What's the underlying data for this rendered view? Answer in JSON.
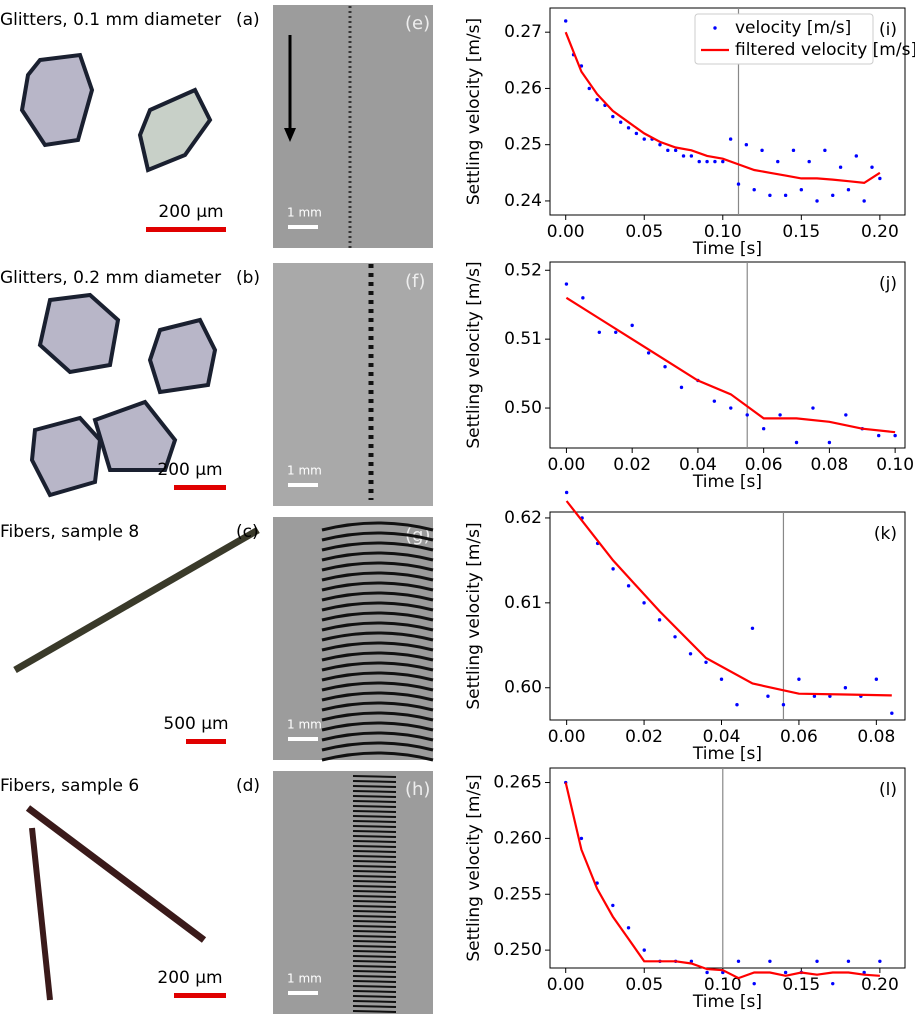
{
  "panels": [
    {
      "title": "Glitters, 0.1 mm diameter",
      "label": "(a)",
      "scale_bar": "200 µm",
      "image_label": "(e)",
      "image_scale_bar": "1 mm"
    },
    {
      "title": "Glitters, 0.2 mm diameter",
      "label": "(b)",
      "scale_bar": "200 µm",
      "image_label": "(f)",
      "image_scale_bar": "1 mm"
    },
    {
      "title": "Fibers, sample 8",
      "label": "(c)",
      "scale_bar": "500 µm",
      "image_label": "(g)",
      "image_scale_bar": "1 mm"
    },
    {
      "title": "Fibers, sample 6",
      "label": "(d)",
      "scale_bar": "200 µm",
      "image_label": "(h)",
      "image_scale_bar": "1 mm"
    }
  ],
  "chart_data": [
    {
      "type": "line",
      "panel_label": "(i)",
      "xlabel": "Time [s]",
      "ylabel": "Settling velocity [m/s]",
      "legend": "upper right",
      "xlim": [
        -0.01,
        0.216
      ],
      "ylim": [
        0.2375,
        0.2743
      ],
      "xticks": [
        {
          "value": 0,
          "label": "0.00"
        },
        0.05,
        {
          "value": 0.1,
          "label": "0.10"
        },
        0.15,
        {
          "value": 0.2,
          "label": "0.20"
        }
      ],
      "yticks": [
        0.24,
        0.25,
        0.26,
        0.27
      ],
      "vline": 0.11,
      "series": [
        {
          "name": "velocity [m/s]",
          "color": "#0000ff",
          "style": "dots",
          "x": [
            0,
            0.005,
            0.01,
            0.015,
            0.02,
            0.025,
            0.03,
            0.035,
            0.04,
            0.045,
            0.05,
            0.055,
            0.06,
            0.065,
            0.07,
            0.075,
            0.08,
            0.085,
            0.09,
            0.095,
            0.1,
            0.105,
            0.11,
            0.115,
            0.12,
            0.125,
            0.13,
            0.135,
            0.14,
            0.145,
            0.15,
            0.155,
            0.16,
            0.165,
            0.17,
            0.175,
            0.18,
            0.185,
            0.19,
            0.195,
            0.2
          ],
          "values": [
            0.272,
            0.266,
            0.264,
            0.26,
            0.258,
            0.257,
            0.255,
            0.254,
            0.253,
            0.252,
            0.251,
            0.251,
            0.25,
            0.249,
            0.249,
            0.248,
            0.248,
            0.247,
            0.247,
            0.247,
            0.247,
            0.251,
            0.243,
            0.25,
            0.242,
            0.249,
            0.241,
            0.247,
            0.241,
            0.249,
            0.242,
            0.247,
            0.24,
            0.249,
            0.241,
            0.246,
            0.242,
            0.248,
            0.24,
            0.246,
            0.244
          ]
        },
        {
          "name": "filtered velocity [m/s]",
          "color": "#ff0000",
          "style": "line",
          "x": [
            0,
            0.01,
            0.02,
            0.03,
            0.04,
            0.05,
            0.06,
            0.07,
            0.08,
            0.09,
            0.1,
            0.11,
            0.12,
            0.13,
            0.14,
            0.15,
            0.16,
            0.17,
            0.18,
            0.19,
            0.2
          ],
          "values": [
            0.27,
            0.263,
            0.259,
            0.256,
            0.254,
            0.252,
            0.2505,
            0.2495,
            0.249,
            0.248,
            0.2475,
            0.2465,
            0.2455,
            0.245,
            0.2445,
            0.244,
            0.244,
            0.2438,
            0.2435,
            0.2432,
            0.245
          ]
        }
      ]
    },
    {
      "type": "line",
      "panel_label": "(j)",
      "xlabel": "Time [s]",
      "ylabel": "Settling velocity [m/s]",
      "xlim": [
        -0.005,
        0.103
      ],
      "ylim": [
        0.4942,
        0.5212
      ],
      "xticks": [
        {
          "value": 0,
          "label": "0.00"
        },
        0.02,
        0.04,
        0.06,
        0.08,
        {
          "value": 0.1,
          "label": "0.10"
        }
      ],
      "yticks": [
        {
          "value": 0.5,
          "label": "0.50"
        },
        0.51,
        0.52
      ],
      "vline": 0.055,
      "series": [
        {
          "color": "#0000ff",
          "style": "dots",
          "x": [
            0,
            0.005,
            0.01,
            0.015,
            0.02,
            0.025,
            0.03,
            0.035,
            0.04,
            0.045,
            0.05,
            0.055,
            0.06,
            0.065,
            0.07,
            0.075,
            0.08,
            0.085,
            0.09,
            0.095,
            0.1
          ],
          "values": [
            0.518,
            0.516,
            0.511,
            0.511,
            0.512,
            0.508,
            0.506,
            0.503,
            0.504,
            0.501,
            0.5,
            0.499,
            0.497,
            0.499,
            0.495,
            0.5,
            0.495,
            0.499,
            0.497,
            0.496,
            0.496
          ]
        },
        {
          "color": "#ff0000",
          "style": "line",
          "x": [
            0,
            0.01,
            0.02,
            0.03,
            0.04,
            0.05,
            0.06,
            0.07,
            0.08,
            0.09,
            0.1
          ],
          "values": [
            0.516,
            0.513,
            0.51,
            0.507,
            0.504,
            0.502,
            0.4985,
            0.4985,
            0.498,
            0.497,
            0.4965
          ]
        }
      ]
    },
    {
      "type": "line",
      "panel_label": "(k)",
      "xlabel": "Time [s]",
      "ylabel": "Settling velocity [m/s]",
      "xlim": [
        -0.0043,
        0.0874
      ],
      "ylim": [
        0.5962,
        0.6207
      ],
      "xticks": [
        {
          "value": 0,
          "label": "0.00"
        },
        0.02,
        0.04,
        0.06,
        0.08
      ],
      "yticks": [
        {
          "value": 0.6,
          "label": "0.60"
        },
        0.61,
        0.62
      ],
      "vline": 0.056,
      "series": [
        {
          "color": "#0000ff",
          "style": "dots",
          "x": [
            0,
            0.004,
            0.008,
            0.012,
            0.016,
            0.02,
            0.024,
            0.028,
            0.032,
            0.036,
            0.04,
            0.044,
            0.048,
            0.052,
            0.056,
            0.06,
            0.064,
            0.068,
            0.072,
            0.076,
            0.08,
            0.084
          ],
          "values": [
            0.623,
            0.62,
            0.617,
            0.614,
            0.612,
            0.61,
            0.608,
            0.606,
            0.604,
            0.603,
            0.601,
            0.598,
            0.607,
            0.599,
            0.598,
            0.601,
            0.599,
            0.599,
            0.6,
            0.599,
            0.601,
            0.597
          ]
        },
        {
          "color": "#ff0000",
          "style": "line",
          "x": [
            0,
            0.012,
            0.024,
            0.036,
            0.048,
            0.06,
            0.072,
            0.084
          ],
          "values": [
            0.622,
            0.615,
            0.609,
            0.6035,
            0.6005,
            0.5993,
            0.5992,
            0.5991
          ]
        }
      ]
    },
    {
      "type": "line",
      "panel_label": "(l)",
      "xlabel": "Time [s]",
      "ylabel": "Settling velocity [m/s]",
      "xlim": [
        -0.01,
        0.216
      ],
      "ylim": [
        0.2484,
        0.2663
      ],
      "xticks": [
        {
          "value": 0,
          "label": "0.00"
        },
        0.05,
        {
          "value": 0.1,
          "label": "0.10"
        },
        0.15,
        {
          "value": 0.2,
          "label": "0.20"
        }
      ],
      "yticks": [
        {
          "value": 0.25,
          "label": "0.250"
        },
        0.255,
        {
          "value": 0.26,
          "label": "0.260"
        },
        0.265
      ],
      "vline": 0.1,
      "series": [
        {
          "color": "#0000ff",
          "style": "dots",
          "x": [
            0,
            0.01,
            0.02,
            0.03,
            0.04,
            0.05,
            0.06,
            0.07,
            0.08,
            0.09,
            0.1,
            0.11,
            0.12,
            0.13,
            0.14,
            0.15,
            0.16,
            0.17,
            0.18,
            0.19,
            0.2
          ],
          "values": [
            0.265,
            0.26,
            0.256,
            0.254,
            0.252,
            0.25,
            0.249,
            0.249,
            0.249,
            0.248,
            0.248,
            0.249,
            0.247,
            0.249,
            0.248,
            0.248,
            0.249,
            0.247,
            0.249,
            0.248,
            0.249
          ]
        },
        {
          "color": "#ff0000",
          "style": "line",
          "x": [
            0,
            0.01,
            0.02,
            0.03,
            0.04,
            0.05,
            0.06,
            0.07,
            0.08,
            0.09,
            0.1,
            0.11,
            0.12,
            0.13,
            0.14,
            0.15,
            0.16,
            0.17,
            0.18,
            0.19,
            0.2
          ],
          "values": [
            0.265,
            0.259,
            0.2555,
            0.253,
            0.251,
            0.249,
            0.249,
            0.249,
            0.2488,
            0.2483,
            0.2482,
            0.2475,
            0.248,
            0.248,
            0.2477,
            0.248,
            0.2478,
            0.248,
            0.248,
            0.2478,
            0.2477
          ]
        }
      ]
    }
  ]
}
